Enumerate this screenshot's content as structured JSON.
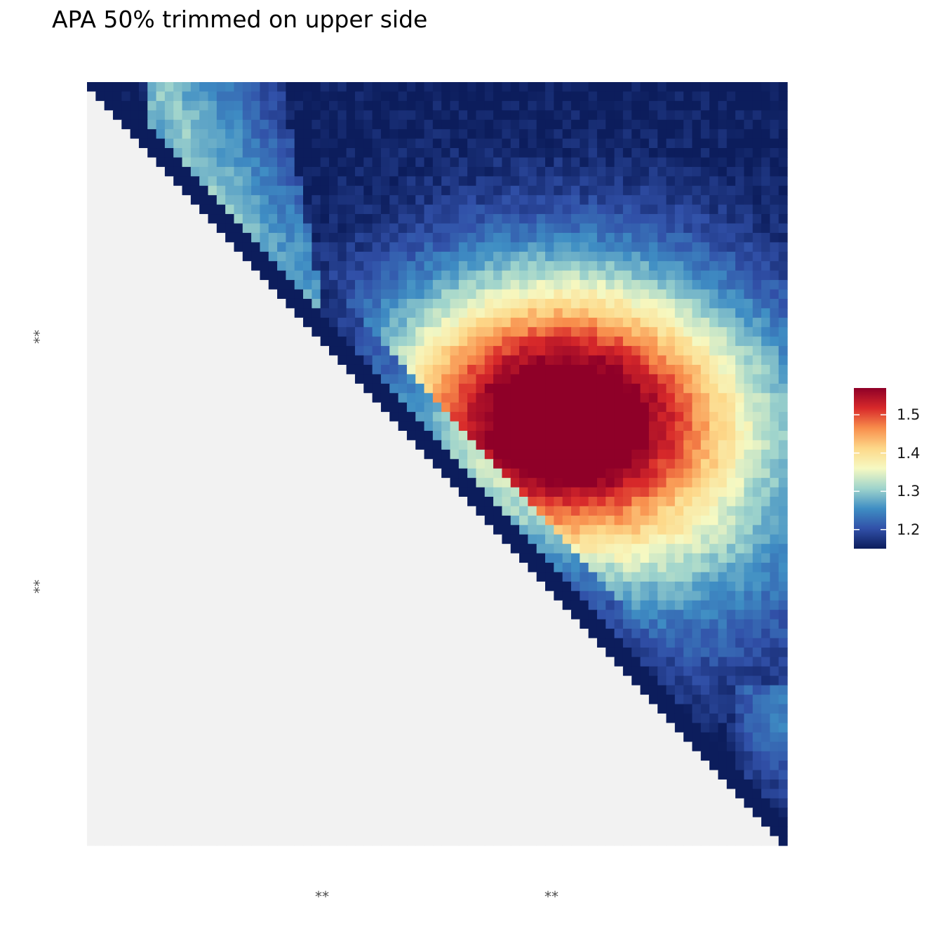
{
  "chart_data": {
    "type": "heatmap",
    "title": "APA 50% trimmed on upper side",
    "x_tick_labels": [
      "**",
      "**"
    ],
    "y_tick_labels": [
      "**",
      "**"
    ],
    "grid_size": 81,
    "lower_triangle": "masked (no data)",
    "colorscale": {
      "name": "RdYlBu (reversed)",
      "min": 1.15,
      "max": 1.57,
      "ticks": [
        1.2,
        1.3,
        1.4,
        1.5
      ],
      "tick_labels": [
        "1.2",
        "1.3",
        "1.4",
        "1.5"
      ],
      "colors": [
        "#0c1d5c",
        "#3150a8",
        "#3f8ec4",
        "#9fd4cc",
        "#f6f9c2",
        "#fdd889",
        "#f88e4c",
        "#d8292a",
        "#8f0028"
      ]
    },
    "features": [
      {
        "name": "central enrichment peak",
        "row": 35,
        "col": 53,
        "peak_value": 1.57
      },
      {
        "name": "upper-left stripe",
        "row_range": [
          0,
          27
        ],
        "col_range": [
          7,
          27
        ],
        "value_range": [
          1.17,
          1.28
        ]
      },
      {
        "name": "lower-right patch",
        "row_range": [
          64,
          78
        ],
        "col_range": [
          75,
          81
        ],
        "value_range": [
          1.17,
          1.26
        ]
      }
    ],
    "background_value": 1.15,
    "masked_color": "#f2f2f2",
    "legend_position": "right"
  }
}
